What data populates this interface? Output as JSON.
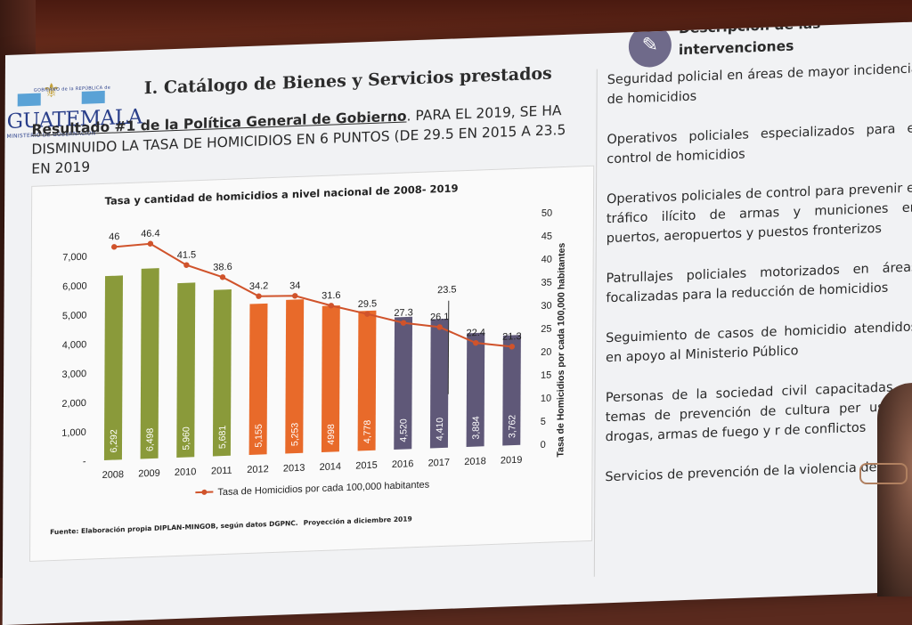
{
  "slide": {
    "logo": {
      "top_text": "GOBIERNO de la REPÚBLICA de",
      "main": "GUATEMALA",
      "sub": "MINISTERIO DE GOBERNACIÓN"
    },
    "title": "I. Catálogo de Bienes y Servicios prestados",
    "result": {
      "bold": "Resultado #1 de la Política General de Gobierno",
      "rest": ". PARA EL 2019, SE HA DISMINUIDO LA TASA DE HOMICIDIOS EN 6 PUNTOS (DE 29.5 EN 2015 A 23.5 EN 2019"
    },
    "source": "Fuente: Elaboración propia DIPLAN-MINGOB, según datos DGPNC.",
    "source_note": "Proyección a diciembre 2019"
  },
  "description": {
    "icon": "edit-document-icon",
    "title_line1": "Descripción de las",
    "title_line2": "intervenciones",
    "items": [
      "Seguridad policial en áreas de mayor incidencia de homicidios",
      "Operativos policiales especializados para el control de homicidios",
      "Operativos policiales de control para prevenir el tráfico ilícito de armas y municiones en puertos, aeropuertos y puestos fronterizos",
      "Patrullajes policiales motorizados en áreas focalizadas para la reducción de homicidios",
      "Seguimiento de casos de homicidio atendidos en apoyo al Ministerio Público",
      "Personas de la sociedad civil capacitadas en temas de prevención de cultura per uso de drogas, armas de fuego y r de conflictos",
      "Servicios de prevención de la violencia delito"
    ]
  },
  "chart_data": {
    "type": "bar",
    "title": "Tasa y cantidad de homicidios a nivel nacional de 2008- 2019",
    "categories": [
      "2008",
      "2009",
      "2010",
      "2011",
      "2012",
      "2013",
      "2014",
      "2015",
      "2016",
      "2017",
      "2018",
      "2019"
    ],
    "series": [
      {
        "name": "Cantidad de homicidios",
        "values": [
          6292,
          6498,
          5960,
          5681,
          5155,
          5253,
          4998,
          4778,
          4520,
          4410,
          3884,
          3762
        ],
        "labels": [
          "6,292",
          "6,498",
          "5,960",
          "5,681",
          "5,155",
          "5,253",
          "4998",
          "4,778",
          "4,520",
          "4,410",
          "3,884",
          "3,762"
        ],
        "colors": [
          "#8a9a3a",
          "#8a9a3a",
          "#8a9a3a",
          "#8a9a3a",
          "#e86a2a",
          "#e86a2a",
          "#e86a2a",
          "#e86a2a",
          "#5f5878",
          "#5f5878",
          "#5f5878",
          "#5f5878"
        ],
        "axis": "left"
      },
      {
        "name": "Tasa de Homicidios por cada 100,000 habitantes",
        "type": "line",
        "values": [
          46,
          46.4,
          41.5,
          38.6,
          34.2,
          34,
          31.6,
          29.5,
          27.3,
          26.1,
          22.4,
          21.3
        ],
        "color": "#d0532b",
        "axis": "right"
      }
    ],
    "annotation": {
      "text": "23.5",
      "category": "2017"
    },
    "left_axis": {
      "ylim": [
        0,
        7000
      ],
      "ticks": [
        "-",
        "1,000",
        "2,000",
        "3,000",
        "4,000",
        "5,000",
        "6,000",
        "7,000"
      ]
    },
    "right_axis": {
      "ylim": [
        0,
        50
      ],
      "ticks": [
        "0",
        "5",
        "10",
        "15",
        "20",
        "25",
        "30",
        "35",
        "40",
        "45",
        "50"
      ],
      "label": "Tasa de Homicidios por cada 100,000 habitantes"
    },
    "legend": "Tasa de Homicidios por cada 100,000 habitantes",
    "legend_position": "bottom"
  }
}
